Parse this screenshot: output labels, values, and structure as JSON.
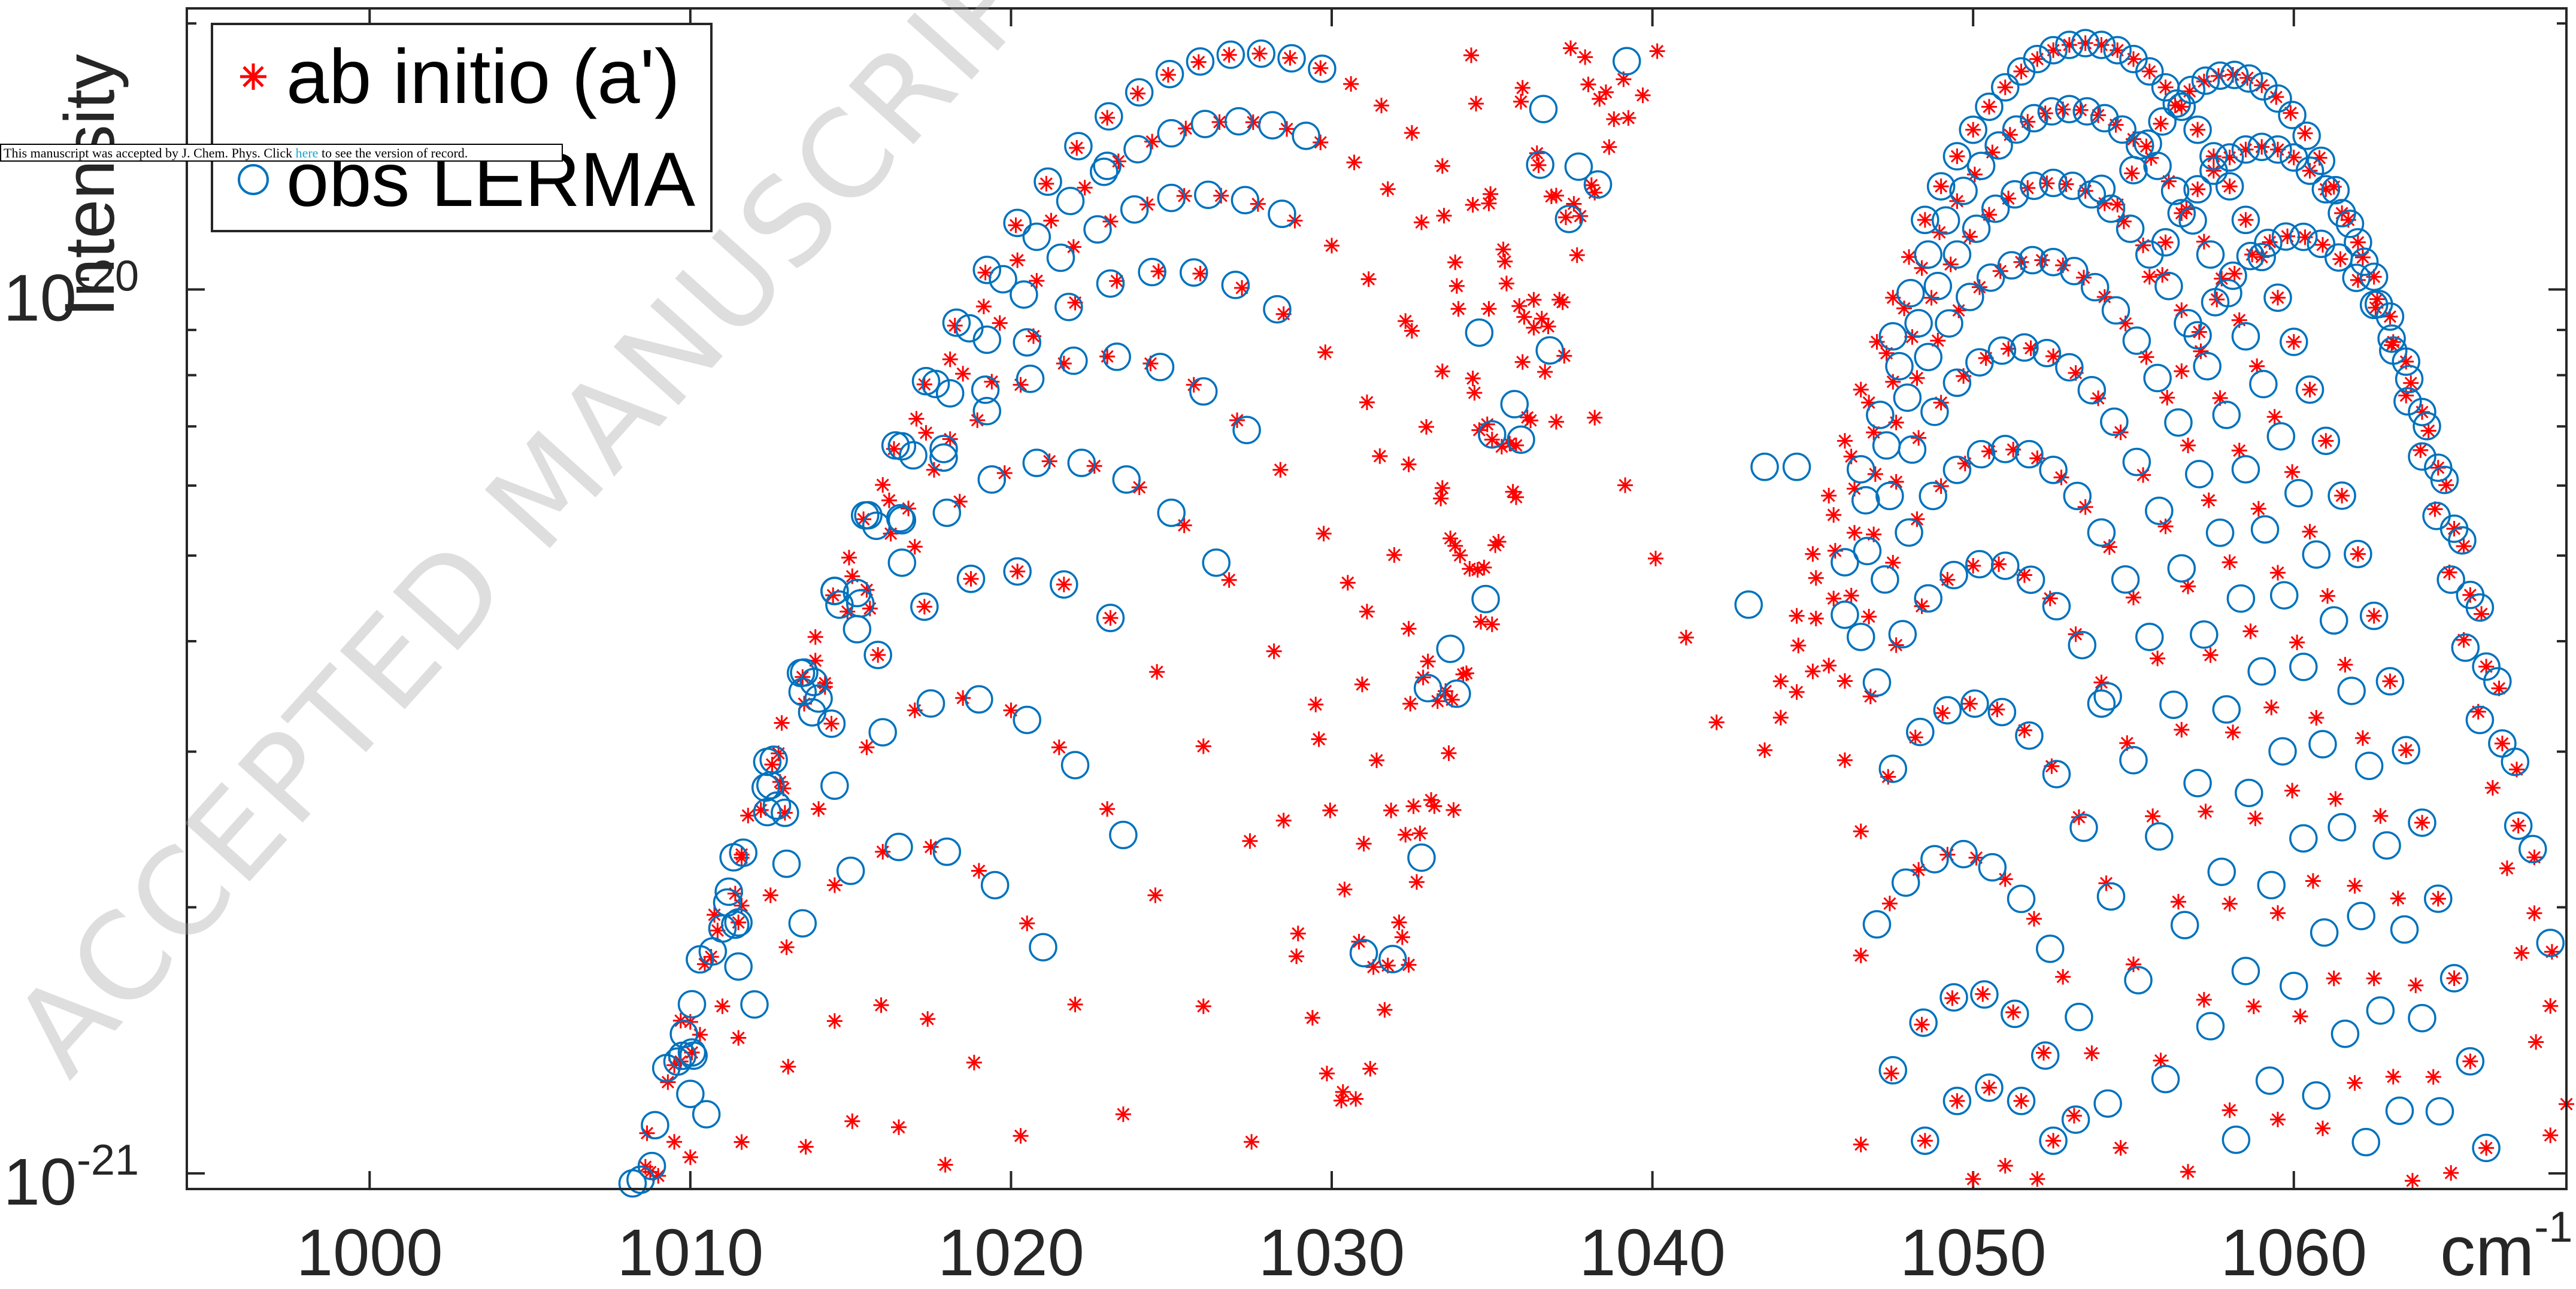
{
  "chart_data": {
    "type": "scatter",
    "title": "",
    "xlabel": "cm",
    "xlabel_exp": "-1",
    "ylabel": "Intensity",
    "xlim": [
      994.3,
      1068.5
    ],
    "ylim": [
      9.6e-22,
      2.08e-20
    ],
    "yscale": "log",
    "x_ticks": [
      "1000",
      "1010",
      "1020",
      "1030",
      "1040",
      "1050",
      "1060"
    ],
    "y_ticks": [
      {
        "base": "10",
        "exp": "-20"
      },
      {
        "base": "10",
        "exp": "-21"
      }
    ],
    "legend_position": "top-left",
    "series": [
      {
        "name": "ab initio (a')",
        "marker": "asterisk",
        "color": "#ff0000",
        "branches": [
          {
            "center": 1027.5,
            "peak": 1.85e-20,
            "curv": 0.0036,
            "start": 994.5,
            "end": 1042.0,
            "step": 0.95
          },
          {
            "center": 1027.0,
            "peak": 1.55e-20,
            "curv": 0.0034,
            "start": 995.0,
            "end": 1038.0,
            "step": 1.05
          },
          {
            "center": 1026.0,
            "peak": 1.28e-20,
            "curv": 0.0036,
            "start": 995.5,
            "end": 1036.0,
            "step": 1.15
          },
          {
            "center": 1025.0,
            "peak": 1.05e-20,
            "curv": 0.004,
            "start": 996.0,
            "end": 1035.0,
            "step": 1.3
          },
          {
            "center": 1023.0,
            "peak": 8.4e-21,
            "curv": 0.0044,
            "start": 996.0,
            "end": 1034.0,
            "step": 1.35
          },
          {
            "center": 1021.5,
            "peak": 6.4e-21,
            "curv": 0.0048,
            "start": 996.0,
            "end": 1033.0,
            "step": 1.4
          },
          {
            "center": 1020.0,
            "peak": 4.8e-21,
            "curv": 0.0055,
            "start": 997.0,
            "end": 1031.0,
            "step": 1.45
          },
          {
            "center": 1018.5,
            "peak": 3.45e-21,
            "curv": 0.0062,
            "start": 997.5,
            "end": 1030.0,
            "step": 1.5
          },
          {
            "center": 1017.0,
            "peak": 2.35e-21,
            "curv": 0.0072,
            "start": 998.0,
            "end": 1029.0,
            "step": 1.5
          },
          {
            "center": 1016.0,
            "peak": 1.55e-21,
            "curv": 0.008,
            "start": 1000.0,
            "end": 1028.0,
            "step": 1.45
          },
          {
            "center": 1015.5,
            "peak": 1.15e-21,
            "curv": 0.0085,
            "start": 1002.0,
            "end": 1026.0,
            "step": 1.45
          },
          {
            "center": 1053.5,
            "peak": 1.9e-20,
            "curv": 0.008,
            "start": 1043.5,
            "end": 1068.5,
            "step": 0.5
          },
          {
            "center": 1053.0,
            "peak": 1.6e-20,
            "curv": 0.0085,
            "start": 1044.0,
            "end": 1068.5,
            "step": 0.55
          },
          {
            "center": 1052.5,
            "peak": 1.32e-20,
            "curv": 0.009,
            "start": 1044.5,
            "end": 1068.5,
            "step": 0.6
          },
          {
            "center": 1052.0,
            "peak": 1.08e-20,
            "curv": 0.0095,
            "start": 1045.0,
            "end": 1068.5,
            "step": 0.65
          },
          {
            "center": 1051.5,
            "peak": 8.6e-21,
            "curv": 0.01,
            "start": 1045.5,
            "end": 1068.5,
            "step": 0.7
          },
          {
            "center": 1051.0,
            "peak": 6.6e-21,
            "curv": 0.0105,
            "start": 1046.0,
            "end": 1068.5,
            "step": 0.75
          },
          {
            "center": 1050.5,
            "peak": 4.9e-21,
            "curv": 0.011,
            "start": 1046.0,
            "end": 1068.5,
            "step": 0.8
          },
          {
            "center": 1050.0,
            "peak": 3.4e-21,
            "curv": 0.0118,
            "start": 1046.5,
            "end": 1068.5,
            "step": 0.85
          },
          {
            "center": 1049.5,
            "peak": 2.3e-21,
            "curv": 0.0128,
            "start": 1046.5,
            "end": 1068.5,
            "step": 0.9
          },
          {
            "center": 1050.0,
            "peak": 1.6e-21,
            "curv": 0.014,
            "start": 1046.5,
            "end": 1066.0,
            "step": 0.95
          },
          {
            "center": 1050.5,
            "peak": 1.25e-21,
            "curv": 0.015,
            "start": 1046.5,
            "end": 1064.0,
            "step": 1.0
          },
          {
            "center": 1051.0,
            "peak": 1.02e-21,
            "curv": 0.015,
            "start": 1047.0,
            "end": 1060.0,
            "step": 1.0
          },
          {
            "center": 1058.0,
            "peak": 1.75e-20,
            "curv": 0.012,
            "start": 1054.5,
            "end": 1068.5,
            "step": 0.45
          },
          {
            "center": 1059.0,
            "peak": 1.45e-20,
            "curv": 0.012,
            "start": 1055.5,
            "end": 1068.5,
            "step": 0.5
          },
          {
            "center": 1060.0,
            "peak": 1.15e-20,
            "curv": 0.0125,
            "start": 1056.5,
            "end": 1068.5,
            "step": 0.55
          },
          {
            "center": 1030.5,
            "peak": 1.2e-21,
            "curv": -0.08,
            "start": 1028.5,
            "end": 1036.0,
            "step": 0.45
          },
          {
            "center": 1031.5,
            "peak": 1.7e-21,
            "curv": -0.075,
            "start": 1029.5,
            "end": 1037.5,
            "step": 0.45
          },
          {
            "center": 1032.5,
            "peak": 2.4e-21,
            "curv": -0.072,
            "start": 1030.5,
            "end": 1038.5,
            "step": 0.45
          },
          {
            "center": 1033.5,
            "peak": 3.4e-21,
            "curv": -0.07,
            "start": 1031.5,
            "end": 1039.5,
            "step": 0.45
          },
          {
            "center": 1034.5,
            "peak": 4.8e-21,
            "curv": -0.068,
            "start": 1032.5,
            "end": 1040.5,
            "step": 0.45
          },
          {
            "center": 1035.5,
            "peak": 6.6e-21,
            "curv": -0.066,
            "start": 1033.5,
            "end": 1041.5,
            "step": 0.45
          },
          {
            "center": 1036.5,
            "peak": 9e-21,
            "curv": -0.064,
            "start": 1034.5,
            "end": 1042.0,
            "step": 0.45
          },
          {
            "center": 1037.5,
            "peak": 1.2e-20,
            "curv": -0.062,
            "start": 1035.5,
            "end": 1042.0,
            "step": 0.45
          },
          {
            "center": 1039.0,
            "peak": 1.55e-20,
            "curv": -0.06,
            "start": 1037.0,
            "end": 1042.0,
            "step": 0.45
          }
        ]
      },
      {
        "name": "obs LERMA",
        "marker": "circle",
        "color": "#0072bd",
        "branches": [
          {
            "center": 1027.5,
            "peak": 1.85e-20,
            "curv": 0.0036,
            "start": 1005.0,
            "end": 1030.5,
            "step": 0.95
          },
          {
            "center": 1027.0,
            "peak": 1.55e-20,
            "curv": 0.0034,
            "start": 1004.0,
            "end": 1030.0,
            "step": 1.05
          },
          {
            "center": 1026.0,
            "peak": 1.28e-20,
            "curv": 0.0036,
            "start": 1002.0,
            "end": 1029.5,
            "step": 1.15
          },
          {
            "center": 1025.0,
            "peak": 1.05e-20,
            "curv": 0.004,
            "start": 1001.0,
            "end": 1029.0,
            "step": 1.3
          },
          {
            "center": 1023.0,
            "peak": 8.4e-21,
            "curv": 0.0044,
            "start": 999.0,
            "end": 1028.0,
            "step": 1.35
          },
          {
            "center": 1021.5,
            "peak": 6.4e-21,
            "curv": 0.0048,
            "start": 997.0,
            "end": 1026.5,
            "step": 1.4
          },
          {
            "center": 1020.0,
            "peak": 4.8e-21,
            "curv": 0.0055,
            "start": 997.0,
            "end": 1024.5,
            "step": 1.45
          },
          {
            "center": 1018.5,
            "peak": 3.45e-21,
            "curv": 0.0062,
            "start": 999.5,
            "end": 1024.0,
            "step": 1.5
          },
          {
            "center": 1017.0,
            "peak": 2.35e-21,
            "curv": 0.0072,
            "start": 1001.5,
            "end": 1021.0,
            "step": 1.5
          },
          {
            "center": 1053.5,
            "peak": 1.9e-20,
            "curv": 0.008,
            "start": 1048.5,
            "end": 1066.0,
            "step": 0.5
          },
          {
            "center": 1053.0,
            "peak": 1.6e-20,
            "curv": 0.0085,
            "start": 1047.5,
            "end": 1066.5,
            "step": 0.55
          },
          {
            "center": 1052.5,
            "peak": 1.32e-20,
            "curv": 0.009,
            "start": 1046.5,
            "end": 1067.5,
            "step": 0.6
          },
          {
            "center": 1052.0,
            "peak": 1.08e-20,
            "curv": 0.0095,
            "start": 1046.0,
            "end": 1068.0,
            "step": 0.65
          },
          {
            "center": 1051.5,
            "peak": 8.6e-21,
            "curv": 0.01,
            "start": 1046.0,
            "end": 1068.0,
            "step": 0.7
          },
          {
            "center": 1051.0,
            "peak": 6.6e-21,
            "curv": 0.0105,
            "start": 1046.5,
            "end": 1068.0,
            "step": 0.75
          },
          {
            "center": 1050.5,
            "peak": 4.9e-21,
            "curv": 0.011,
            "start": 1047.0,
            "end": 1068.0,
            "step": 0.8
          },
          {
            "center": 1050.0,
            "peak": 3.4e-21,
            "curv": 0.0118,
            "start": 1047.5,
            "end": 1068.0,
            "step": 0.85
          },
          {
            "center": 1049.5,
            "peak": 2.3e-21,
            "curv": 0.0128,
            "start": 1047.0,
            "end": 1068.0,
            "step": 0.9
          },
          {
            "center": 1050.0,
            "peak": 1.6e-21,
            "curv": 0.014,
            "start": 1047.5,
            "end": 1066.0,
            "step": 0.95
          },
          {
            "center": 1050.5,
            "peak": 1.25e-21,
            "curv": 0.015,
            "start": 1047.5,
            "end": 1063.5,
            "step": 1.0
          },
          {
            "center": 1058.0,
            "peak": 1.75e-20,
            "curv": 0.012,
            "start": 1055.0,
            "end": 1066.0,
            "step": 0.45
          },
          {
            "center": 1059.0,
            "peak": 1.45e-20,
            "curv": 0.012,
            "start": 1056.0,
            "end": 1067.0,
            "step": 0.5
          },
          {
            "center": 1060.0,
            "peak": 1.15e-20,
            "curv": 0.0125,
            "start": 1057.0,
            "end": 1068.0,
            "step": 0.55
          },
          {
            "center": 1031.5,
            "peak": 1.7e-21,
            "curv": -0.075,
            "start": 1031.0,
            "end": 1037.5,
            "step": 0.9
          },
          {
            "center": 1033.5,
            "peak": 3.4e-21,
            "curv": -0.07,
            "start": 1033.0,
            "end": 1039.5,
            "step": 0.9
          },
          {
            "center": 1035.5,
            "peak": 6.6e-21,
            "curv": -0.066,
            "start": 1035.0,
            "end": 1041.5,
            "step": 0.9
          },
          {
            "center": 1037.5,
            "peak": 1.2e-20,
            "curv": -0.062,
            "start": 1036.5,
            "end": 1042.0,
            "step": 0.9
          }
        ],
        "points": [
          {
            "x": 1023.0,
            "y": 1.38e-20
          },
          {
            "x": 1043.5,
            "y": 6.3e-21
          },
          {
            "x": 1044.5,
            "y": 6.3e-21
          },
          {
            "x": 1054.0,
            "y": 1.3e-20
          },
          {
            "x": 1043.0,
            "y": 4.4e-21
          },
          {
            "x": 1054.0,
            "y": 3.4e-21
          }
        ]
      }
    ]
  },
  "notice": {
    "text_before": "This manuscript was accepted by J. Chem. Phys. Click ",
    "link_text": "here",
    "text_after": " to see the version of record."
  },
  "watermark": "ACCEPTED MANUSCRIPT"
}
